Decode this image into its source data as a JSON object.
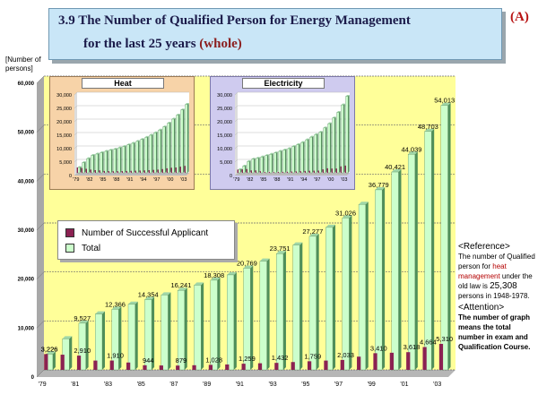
{
  "header": {
    "title_line1": "3.9 The Number of Qualified Person for Energy Management",
    "title_line2_prefix": "for the last 25 years ",
    "title_line2_highlight": "(whole)",
    "section_tag": "(A)"
  },
  "y_axis_label": "[Number of\npersons]",
  "legend": {
    "successful_label": "Number of Successful Applicant",
    "total_label": "Total"
  },
  "notes": {
    "reference_heading": "<Reference>",
    "reference_text_1": "The number of Qualified person for ",
    "reference_highlight": "heat management",
    "reference_text_2": " under the old law is ",
    "reference_number": "25,308",
    "reference_text_3": " persons in 1948-1978.",
    "attention_heading": "<Attention>",
    "attention_text": "The number of graph means the total number in exam and Qualification Course."
  },
  "colors": {
    "plot_bg": "#ffff99",
    "successful": "#8b2252",
    "total_front": "#ccffcc",
    "total_side": "#4f8f5a",
    "floor": "#b6b6b6",
    "grid": "#6b6b6b",
    "heat_bg": "#f7d3a8",
    "elec_bg": "#cfcbef"
  },
  "chart_data": [
    {
      "type": "bar",
      "title": "The Number of Qualified Person for Energy Management for the last 25 years (whole)",
      "ylabel": "[Number of persons]",
      "ylim": [
        0,
        60000
      ],
      "yticks": [
        "0",
        "10,000",
        "20,000",
        "30,000",
        "40,000",
        "50,000",
        "60,000"
      ],
      "x_tick_labels": [
        "'79",
        "'81",
        "'83",
        "'85",
        "'87",
        "'89",
        "'91",
        "'93",
        "'95",
        "'97",
        "'99",
        "'01",
        "'03"
      ],
      "grid": true,
      "legend_position": "left",
      "categories": [
        "1979",
        "1980",
        "1981",
        "1982",
        "1983",
        "1984",
        "1985",
        "1986",
        "1987",
        "1988",
        "1989",
        "1990",
        "1991",
        "1992",
        "1993",
        "1994",
        "1995",
        "1996",
        "1997",
        "1998",
        "1999",
        "2000",
        "2001",
        "2002",
        "2003"
      ],
      "series": [
        {
          "name": "Number of Successful Applicant",
          "values": [
            3226,
            3100,
            2910,
            1900,
            1910,
            1500,
            944,
            900,
            879,
            950,
            1028,
            1100,
            1259,
            1350,
            1432,
            1600,
            1759,
            1900,
            2033,
            2700,
            3410,
            3500,
            3618,
            4664,
            5310
          ],
          "labels": {
            "0": "3,226",
            "2": "2,910",
            "4": "1,910",
            "6": "944",
            "8": "879",
            "10": "1,028",
            "12": "1,259",
            "14": "1,432",
            "16": "1,759",
            "18": "2,033",
            "20": "3,410",
            "22": "3,618",
            "23": "4,664",
            "24": "5,310"
          }
        },
        {
          "name": "Total",
          "values": [
            3226,
            6336,
            9527,
            11400,
            12366,
            13400,
            14354,
            15300,
            16241,
            17300,
            18308,
            19400,
            20769,
            22200,
            23751,
            25500,
            27277,
            29100,
            31026,
            33800,
            36779,
            40421,
            44039,
            48703,
            54013
          ],
          "labels": {
            "0": "3,226",
            "2": "9,527",
            "4": "12,366",
            "6": "14,354",
            "8": "16,241",
            "10": "18,308",
            "12": "20,769",
            "14": "23,751",
            "16": "27,277",
            "18": "31,026",
            "20": "36,779",
            "21": "40,421",
            "22": "44,039",
            "23": "48,703",
            "24": "54,013"
          }
        }
      ]
    },
    {
      "type": "bar",
      "title": "Heat",
      "ylim": [
        0,
        30000
      ],
      "yticks": [
        "0",
        "5,000",
        "10,000",
        "15,000",
        "20,000",
        "25,000",
        "30,000"
      ],
      "x_tick_labels": [
        "'79",
        "'82",
        "'85",
        "'88",
        "'91",
        "'94",
        "'97",
        "'00",
        "'03"
      ],
      "categories": [
        "1979",
        "1980",
        "1981",
        "1982",
        "1983",
        "1984",
        "1985",
        "1986",
        "1987",
        "1988",
        "1989",
        "1990",
        "1991",
        "1992",
        "1993",
        "1994",
        "1995",
        "1996",
        "1997",
        "1998",
        "1999",
        "2000",
        "2001",
        "2002",
        "2003"
      ],
      "series": [
        {
          "name": "Number of Successful Applicant",
          "values": [
            2000,
            1800,
            1500,
            1200,
            1000,
            900,
            700,
            650,
            600,
            620,
            650,
            700,
            750,
            800,
            850,
            900,
            1000,
            1100,
            1200,
            1400,
            1700,
            1900,
            2000,
            2300,
            2600
          ]
        },
        {
          "name": "Total",
          "values": [
            2000,
            3800,
            5300,
            6500,
            7000,
            7500,
            8000,
            8400,
            8800,
            9300,
            9800,
            10400,
            11000,
            11700,
            12400,
            13200,
            14000,
            14900,
            15900,
            17100,
            18500,
            20000,
            21500,
            23400,
            25500
          ]
        }
      ]
    },
    {
      "type": "bar",
      "title": "Electricity",
      "ylim": [
        0,
        30000
      ],
      "yticks": [
        "0",
        "5,000",
        "10,000",
        "15,000",
        "20,000",
        "25,000",
        "30,000"
      ],
      "x_tick_labels": [
        "'79",
        "'82",
        "'85",
        "'88",
        "'91",
        "'94",
        "'97",
        "'00",
        "'03"
      ],
      "categories": [
        "1979",
        "1980",
        "1981",
        "1982",
        "1983",
        "1984",
        "1985",
        "1986",
        "1987",
        "1988",
        "1989",
        "1990",
        "1991",
        "1992",
        "1993",
        "1994",
        "1995",
        "1996",
        "1997",
        "1998",
        "1999",
        "2000",
        "2001",
        "2002",
        "2003"
      ],
      "series": [
        {
          "name": "Number of Successful Applicant",
          "values": [
            1200,
            1300,
            1400,
            900,
            900,
            600,
            300,
            300,
            280,
            330,
            380,
            400,
            500,
            550,
            600,
            700,
            760,
            800,
            830,
            1300,
            1700,
            1600,
            1600,
            2400,
            2700
          ]
        },
        {
          "name": "Total",
          "values": [
            1200,
            2500,
            4200,
            5100,
            5400,
            5900,
            6400,
            6900,
            7400,
            8000,
            8500,
            9000,
            9800,
            10500,
            11300,
            12300,
            13300,
            14200,
            15100,
            16700,
            18300,
            20400,
            22500,
            25300,
            28500
          ]
        }
      ]
    }
  ]
}
